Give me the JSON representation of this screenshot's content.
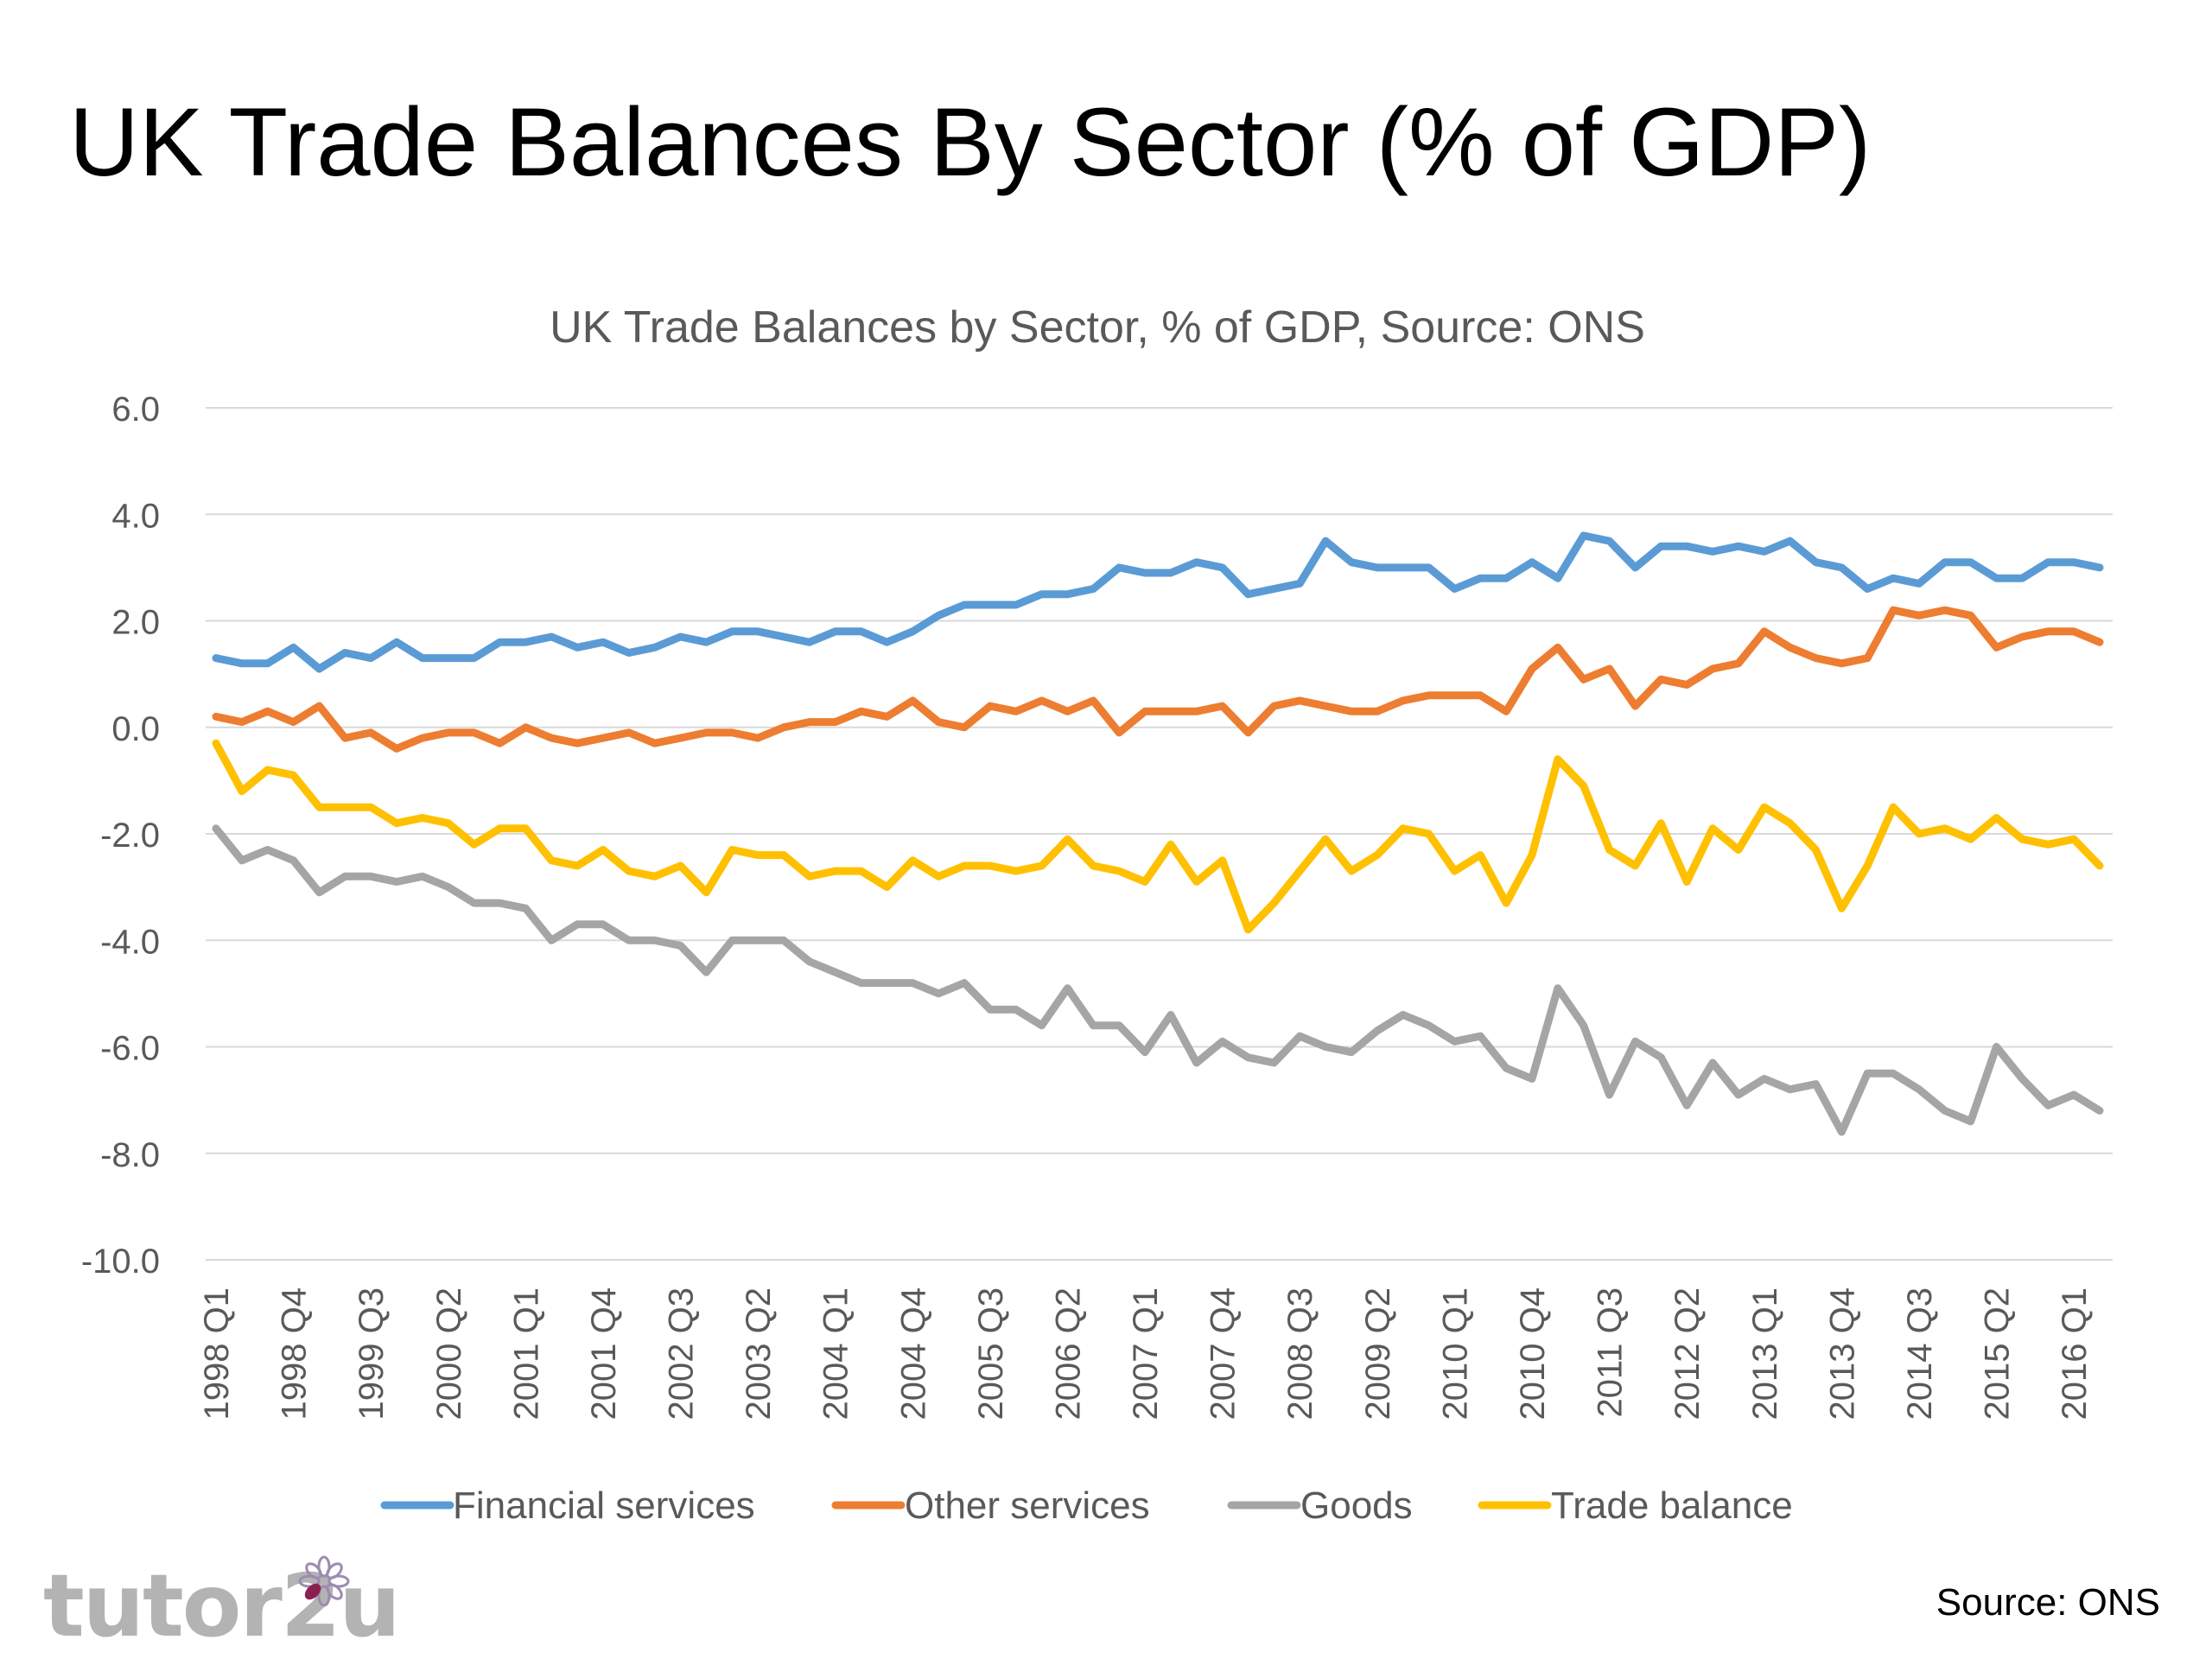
{
  "slide": {
    "title": "UK Trade Balances By Sector (% of GDP)",
    "brand": "tutor2u",
    "source_note": "Source: ONS"
  },
  "chart_data": {
    "type": "line",
    "title": "UK Trade Balances by Sector, % of GDP, Source: ONS",
    "xlabel": "",
    "ylabel": "",
    "ylim": [
      -10,
      6
    ],
    "yticks": [
      "6.0",
      "4.0",
      "2.0",
      "0.0",
      "-2.0",
      "-4.0",
      "-6.0",
      "-8.0",
      "-10.0"
    ],
    "ytick_values": [
      6,
      4,
      2,
      0,
      -2,
      -4,
      -6,
      -8,
      -10
    ],
    "xtick_labels": [
      "1998 Q1",
      "1998 Q4",
      "1999 Q3",
      "2000 Q2",
      "2001 Q1",
      "2001 Q4",
      "2002 Q3",
      "2003 Q2",
      "2004 Q1",
      "2004 Q4",
      "2005 Q3",
      "2006 Q2",
      "2007 Q1",
      "2007 Q4",
      "2008 Q3",
      "2009 Q2",
      "2010 Q1",
      "2010 Q4",
      "2011 Q3",
      "2012 Q2",
      "2013 Q1",
      "2013 Q4",
      "2014 Q3",
      "2015 Q2",
      "2016 Q1"
    ],
    "grid": true,
    "legend_position": "bottom",
    "series": [
      {
        "name": "Financial services",
        "color": "#5b9bd5",
        "values": [
          1.3,
          1.2,
          1.2,
          1.5,
          1.1,
          1.4,
          1.3,
          1.6,
          1.3,
          1.3,
          1.3,
          1.6,
          1.6,
          1.7,
          1.5,
          1.6,
          1.4,
          1.5,
          1.7,
          1.6,
          1.8,
          1.8,
          1.7,
          1.6,
          1.8,
          1.8,
          1.6,
          1.8,
          2.1,
          2.3,
          2.3,
          2.3,
          2.5,
          2.5,
          2.6,
          3.0,
          2.9,
          2.9,
          3.1,
          3.0,
          2.5,
          2.6,
          2.7,
          3.5,
          3.1,
          3.0,
          3.0,
          3.0,
          2.6,
          2.8,
          2.8,
          3.1,
          2.8,
          3.6,
          3.5,
          3.0,
          3.4,
          3.4,
          3.3,
          3.4,
          3.3,
          3.5,
          3.1,
          3.0,
          2.6,
          2.8,
          2.7,
          3.1,
          3.1,
          2.8,
          2.8,
          3.1,
          3.1,
          3.0
        ]
      },
      {
        "name": "Other services",
        "color": "#ed7d31",
        "values": [
          0.2,
          0.1,
          0.3,
          0.1,
          0.4,
          -0.2,
          -0.1,
          -0.4,
          -0.2,
          -0.1,
          -0.1,
          -0.3,
          0.0,
          -0.2,
          -0.3,
          -0.2,
          -0.1,
          -0.3,
          -0.2,
          -0.1,
          -0.1,
          -0.2,
          0.0,
          0.1,
          0.1,
          0.3,
          0.2,
          0.5,
          0.1,
          0.0,
          0.4,
          0.3,
          0.5,
          0.3,
          0.5,
          -0.1,
          0.3,
          0.3,
          0.3,
          0.4,
          -0.1,
          0.4,
          0.5,
          0.4,
          0.3,
          0.3,
          0.5,
          0.6,
          0.6,
          0.6,
          0.3,
          1.1,
          1.5,
          0.9,
          1.1,
          0.4,
          0.9,
          0.8,
          1.1,
          1.2,
          1.8,
          1.5,
          1.3,
          1.2,
          1.3,
          2.2,
          2.1,
          2.2,
          2.1,
          1.5,
          1.7,
          1.8,
          1.8,
          1.6
        ]
      },
      {
        "name": "Goods",
        "color": "#a5a5a5",
        "values": [
          -1.9,
          -2.5,
          -2.3,
          -2.5,
          -3.1,
          -2.8,
          -2.8,
          -2.9,
          -2.8,
          -3.0,
          -3.3,
          -3.3,
          -3.4,
          -4.0,
          -3.7,
          -3.7,
          -4.0,
          -4.0,
          -4.1,
          -4.6,
          -4.0,
          -4.0,
          -4.0,
          -4.4,
          -4.6,
          -4.8,
          -4.8,
          -4.8,
          -5.0,
          -4.8,
          -5.3,
          -5.3,
          -5.6,
          -4.9,
          -5.6,
          -5.6,
          -6.1,
          -5.4,
          -6.3,
          -5.9,
          -6.2,
          -6.3,
          -5.8,
          -6.0,
          -6.1,
          -5.7,
          -5.4,
          -5.6,
          -5.9,
          -5.8,
          -6.4,
          -6.6,
          -4.9,
          -5.6,
          -6.9,
          -5.9,
          -6.2,
          -7.1,
          -6.3,
          -6.9,
          -6.6,
          -6.8,
          -6.7,
          -7.6,
          -6.5,
          -6.5,
          -6.8,
          -7.2,
          -7.4,
          -6.0,
          -6.6,
          -7.1,
          -6.9,
          -7.2
        ]
      },
      {
        "name": "Trade balance",
        "color": "#ffc000",
        "values": [
          -0.3,
          -1.2,
          -0.8,
          -0.9,
          -1.5,
          -1.5,
          -1.5,
          -1.8,
          -1.7,
          -1.8,
          -2.2,
          -1.9,
          -1.9,
          -2.5,
          -2.6,
          -2.3,
          -2.7,
          -2.8,
          -2.6,
          -3.1,
          -2.3,
          -2.4,
          -2.4,
          -2.8,
          -2.7,
          -2.7,
          -3.0,
          -2.5,
          -2.8,
          -2.6,
          -2.6,
          -2.7,
          -2.6,
          -2.1,
          -2.6,
          -2.7,
          -2.9,
          -2.2,
          -2.9,
          -2.5,
          -3.8,
          -3.3,
          -2.7,
          -2.1,
          -2.7,
          -2.4,
          -1.9,
          -2.0,
          -2.7,
          -2.4,
          -3.3,
          -2.4,
          -0.6,
          -1.1,
          -2.3,
          -2.6,
          -1.8,
          -2.9,
          -1.9,
          -2.3,
          -1.5,
          -1.8,
          -2.3,
          -3.4,
          -2.6,
          -1.5,
          -2.0,
          -1.9,
          -2.1,
          -1.7,
          -2.1,
          -2.2,
          -2.1,
          -2.6
        ]
      }
    ]
  }
}
